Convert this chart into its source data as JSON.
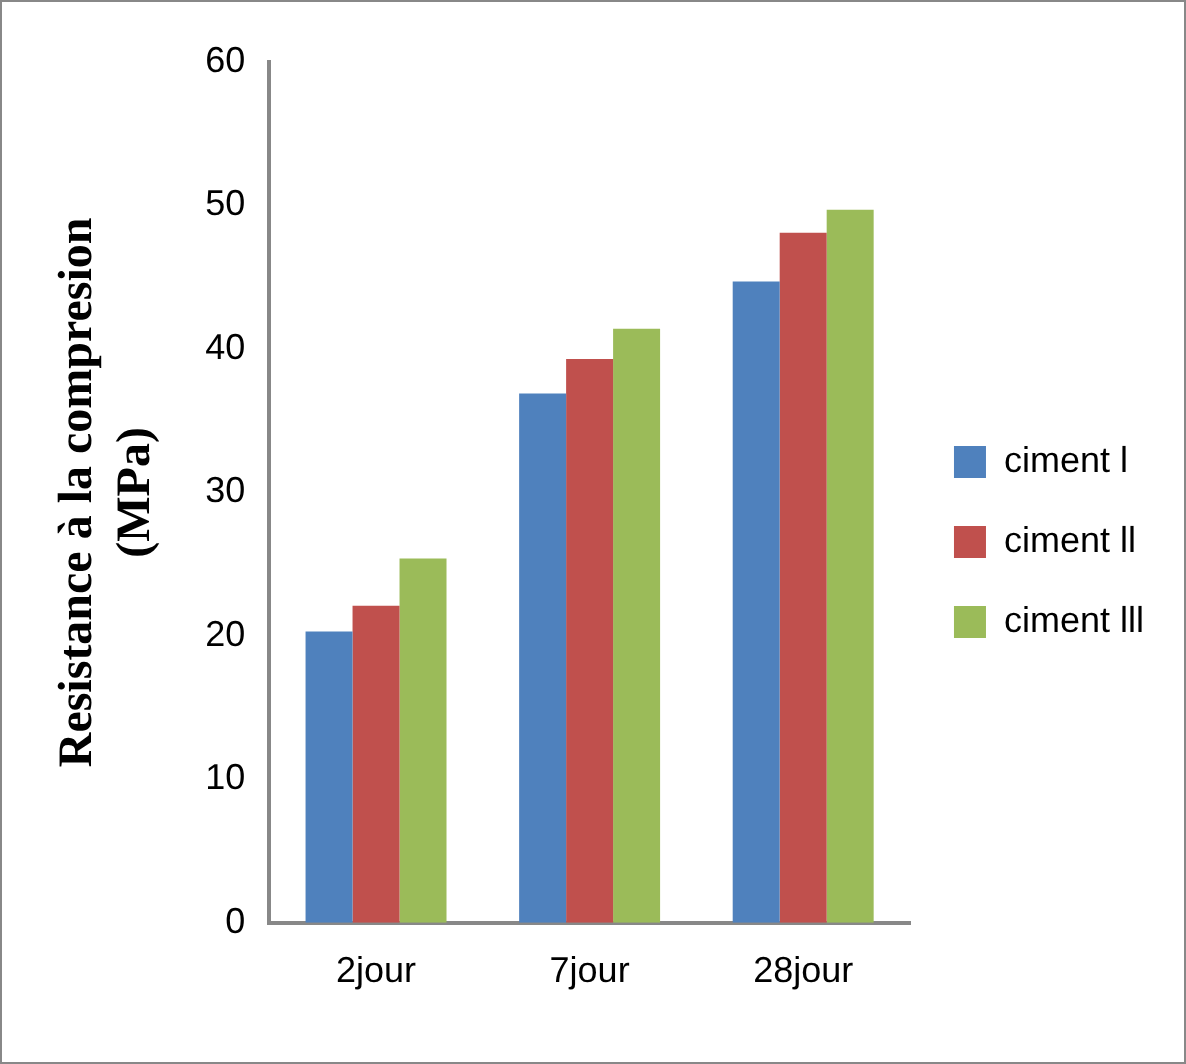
{
  "chart_data": {
    "type": "bar",
    "ylabel": "Resistance à la compresion (MPa)",
    "categories": [
      "2jour",
      "7jour",
      "28jour"
    ],
    "series": [
      {
        "name": "ciment l",
        "color": "#4f81bd",
        "values": [
          20.3,
          36.9,
          44.7
        ]
      },
      {
        "name": "ciment ll",
        "color": "#c0504d",
        "values": [
          22.1,
          39.3,
          48.1
        ]
      },
      {
        "name": "ciment lll",
        "color": "#9bbb59",
        "values": [
          25.4,
          41.4,
          49.7
        ]
      }
    ],
    "ylim": [
      0,
      60
    ],
    "yticks": [
      0,
      10,
      20,
      30,
      40,
      50,
      60
    ],
    "grid": false,
    "legend": "right"
  }
}
